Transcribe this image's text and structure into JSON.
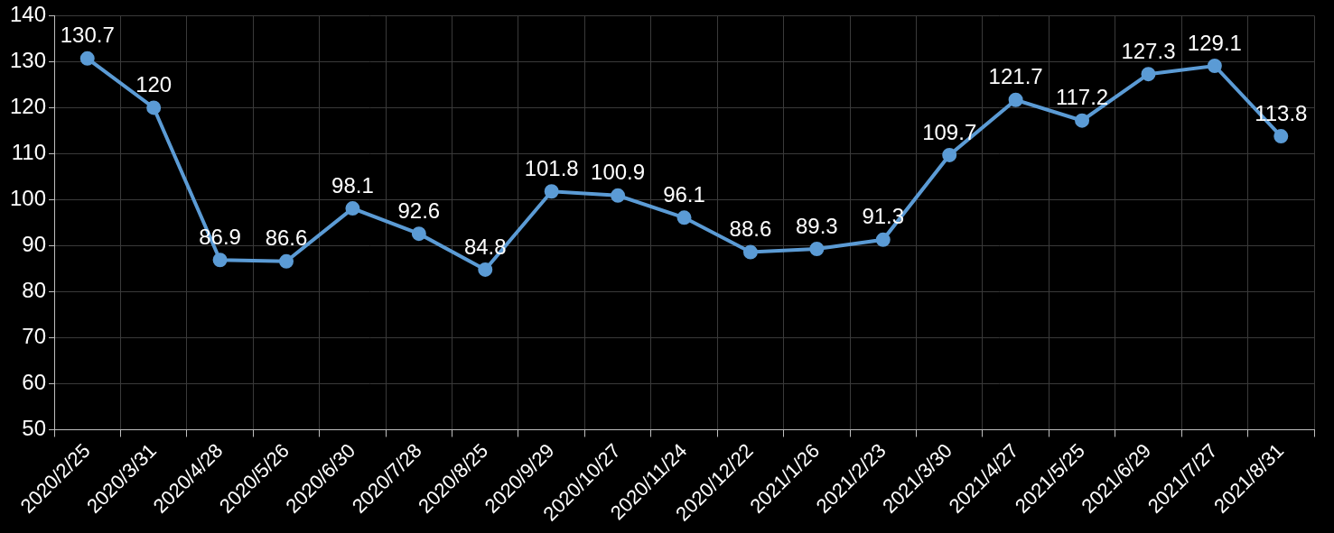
{
  "chart_data": {
    "type": "line",
    "categories": [
      "2020/2/25",
      "2020/3/31",
      "2020/4/28",
      "2020/5/26",
      "2020/6/30",
      "2020/7/28",
      "2020/8/25",
      "2020/9/29",
      "2020/10/27",
      "2020/11/24",
      "2020/12/22",
      "2021/1/26",
      "2021/2/23",
      "2021/3/30",
      "2021/4/27",
      "2021/5/25",
      "2021/6/29",
      "2021/7/27",
      "2021/8/31"
    ],
    "values": [
      130.7,
      120,
      86.9,
      86.6,
      98.1,
      92.6,
      84.8,
      101.8,
      100.9,
      96.1,
      88.6,
      89.3,
      91.3,
      109.7,
      121.7,
      117.2,
      127.3,
      129.1,
      113.8
    ],
    "color": "#5b9bd5",
    "marker": "circle",
    "ylim": [
      50,
      140
    ],
    "yticks": [
      50,
      60,
      70,
      80,
      90,
      100,
      110,
      120,
      130,
      140
    ],
    "grid": true,
    "data_labels": true
  }
}
